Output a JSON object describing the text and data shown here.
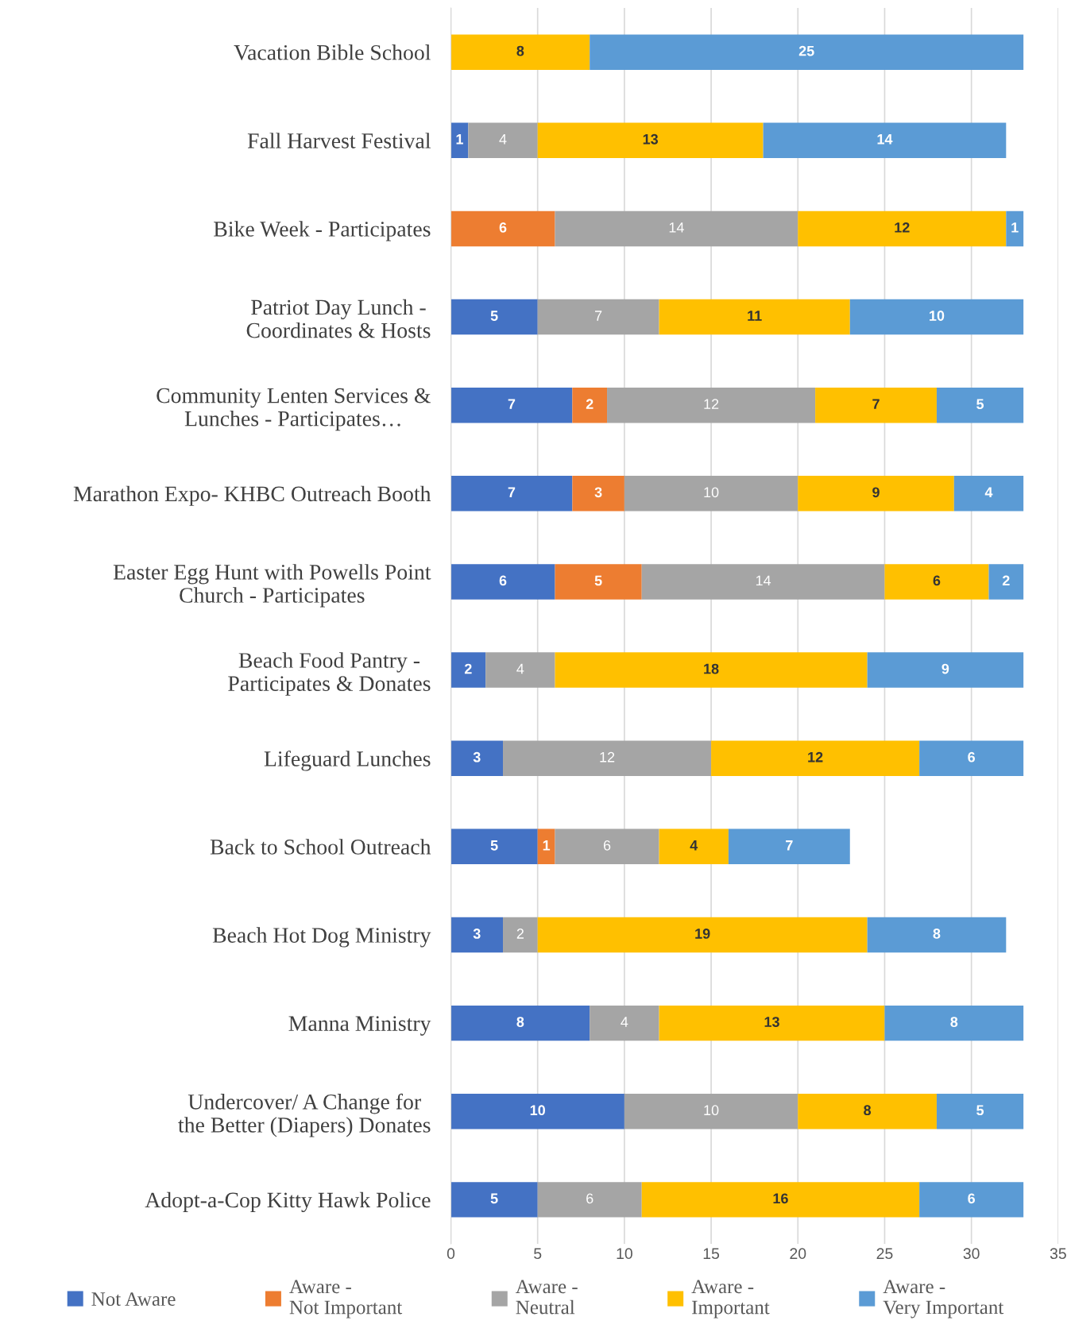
{
  "chart_data": {
    "type": "bar",
    "orientation": "horizontal",
    "stacked": true,
    "categories": [
      "Vacation Bible School",
      "Fall Harvest Festival",
      "Bike Week - Participates",
      "Patriot Day Lunch -\nCoordinates & Hosts",
      "Community Lenten Services &\nLunches - Participates…",
      "Marathon Expo- KHBC Outreach Booth",
      "Easter Egg Hunt with Powells Point\nChurch - Participates",
      "Beach Food Pantry -\nParticipates & Donates",
      "Lifeguard Lunches",
      "Back to School Outreach",
      "Beach Hot Dog Ministry",
      "Manna Ministry",
      "Undercover/ A Change for\nthe Better (Diapers) Donates",
      "Adopt-a-Cop Kitty Hawk Police"
    ],
    "series": [
      {
        "name": "Not Aware",
        "color": "#4472c4",
        "values": [
          0,
          1,
          0,
          5,
          7,
          7,
          6,
          2,
          3,
          5,
          3,
          8,
          10,
          5
        ],
        "value_labels": [
          null,
          "1",
          null,
          "5",
          "7",
          "7",
          "6",
          "2",
          "3",
          "5",
          "3",
          "8",
          "10",
          "5"
        ]
      },
      {
        "name": "Aware -\nNot Important",
        "color": "#ed7d31",
        "values": [
          null,
          null,
          6,
          null,
          2,
          3,
          5,
          null,
          null,
          1,
          null,
          null,
          null,
          null
        ]
      },
      {
        "name": "Aware -\nNeutral",
        "color": "#a5a5a5",
        "values": [
          null,
          4,
          14,
          7,
          12,
          10,
          14,
          4,
          12,
          6,
          2,
          4,
          10,
          6
        ]
      },
      {
        "name": "Aware -\nImportant",
        "color": "#ffc000",
        "values": [
          8,
          13,
          12,
          11,
          7,
          9,
          6,
          18,
          12,
          4,
          19,
          13,
          8,
          16
        ]
      },
      {
        "name": "Aware -\nVery Important",
        "color": "#5b9bd5",
        "values": [
          25,
          14,
          1,
          10,
          5,
          4,
          2,
          9,
          6,
          7,
          8,
          8,
          5,
          6
        ]
      }
    ],
    "xlim": [
      0,
      35
    ],
    "xticks": [
      0,
      5,
      10,
      15,
      20,
      25,
      30,
      35
    ],
    "grid": "x",
    "legend": "bottom",
    "data_labels": true
  }
}
